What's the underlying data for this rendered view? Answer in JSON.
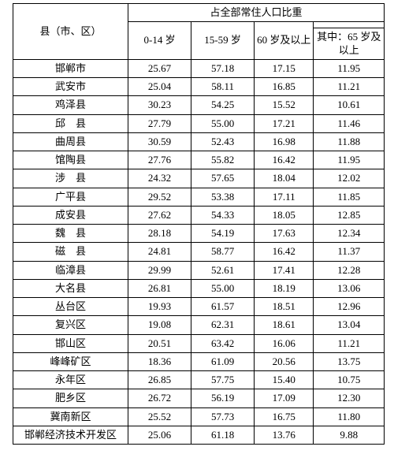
{
  "table": {
    "type": "table",
    "background_color": "#ffffff",
    "border_color": "#000000",
    "font_family": "SimSun",
    "header_fontsize": 13,
    "cell_fontsize": 13,
    "col_widths_pct": [
      31,
      17,
      17,
      16,
      19
    ],
    "header": {
      "region_label": "县（市、区）",
      "group_label": "占全部常住人口比重",
      "col_0_14": "0-14 岁",
      "col_15_59": "15-59 岁",
      "col_60_plus": "60 岁及以上",
      "col_65_plus": "其中：65 岁及以上"
    },
    "rows": [
      {
        "region": "邯郸市",
        "age_0_14": "25.67",
        "age_15_59": "57.18",
        "age_60_plus": "17.15",
        "age_65_plus": "11.95"
      },
      {
        "region": "武安市",
        "age_0_14": "25.04",
        "age_15_59": "58.11",
        "age_60_plus": "16.85",
        "age_65_plus": "11.21"
      },
      {
        "region": "鸡泽县",
        "age_0_14": "30.23",
        "age_15_59": "54.25",
        "age_60_plus": "15.52",
        "age_65_plus": "10.61"
      },
      {
        "region": "邱　县",
        "age_0_14": "27.79",
        "age_15_59": "55.00",
        "age_60_plus": "17.21",
        "age_65_plus": "11.46"
      },
      {
        "region": "曲周县",
        "age_0_14": "30.59",
        "age_15_59": "52.43",
        "age_60_plus": "16.98",
        "age_65_plus": "11.88"
      },
      {
        "region": "馆陶县",
        "age_0_14": "27.76",
        "age_15_59": "55.82",
        "age_60_plus": "16.42",
        "age_65_plus": "11.95"
      },
      {
        "region": "涉　县",
        "age_0_14": "24.32",
        "age_15_59": "57.65",
        "age_60_plus": "18.04",
        "age_65_plus": "12.02"
      },
      {
        "region": "广平县",
        "age_0_14": "29.52",
        "age_15_59": "53.38",
        "age_60_plus": "17.11",
        "age_65_plus": "11.85"
      },
      {
        "region": "成安县",
        "age_0_14": "27.62",
        "age_15_59": "54.33",
        "age_60_plus": "18.05",
        "age_65_plus": "12.85"
      },
      {
        "region": "魏　县",
        "age_0_14": "28.18",
        "age_15_59": "54.19",
        "age_60_plus": "17.63",
        "age_65_plus": "12.34"
      },
      {
        "region": "磁　县",
        "age_0_14": "24.81",
        "age_15_59": "58.77",
        "age_60_plus": "16.42",
        "age_65_plus": "11.37"
      },
      {
        "region": "临漳县",
        "age_0_14": "29.99",
        "age_15_59": "52.61",
        "age_60_plus": "17.41",
        "age_65_plus": "12.28"
      },
      {
        "region": "大名县",
        "age_0_14": "26.81",
        "age_15_59": "55.00",
        "age_60_plus": "18.19",
        "age_65_plus": "13.06"
      },
      {
        "region": "丛台区",
        "age_0_14": "19.93",
        "age_15_59": "61.57",
        "age_60_plus": "18.51",
        "age_65_plus": "12.96"
      },
      {
        "region": "复兴区",
        "age_0_14": "19.08",
        "age_15_59": "62.31",
        "age_60_plus": "18.61",
        "age_65_plus": "13.04"
      },
      {
        "region": "邯山区",
        "age_0_14": "20.51",
        "age_15_59": "63.42",
        "age_60_plus": "16.06",
        "age_65_plus": "11.21"
      },
      {
        "region": "峰峰矿区",
        "age_0_14": "18.36",
        "age_15_59": "61.09",
        "age_60_plus": "20.56",
        "age_65_plus": "13.75"
      },
      {
        "region": "永年区",
        "age_0_14": "26.85",
        "age_15_59": "57.75",
        "age_60_plus": "15.40",
        "age_65_plus": "10.75"
      },
      {
        "region": "肥乡区",
        "age_0_14": "26.72",
        "age_15_59": "56.19",
        "age_60_plus": "17.09",
        "age_65_plus": "12.30"
      },
      {
        "region": "冀南新区",
        "age_0_14": "25.52",
        "age_15_59": "57.73",
        "age_60_plus": "16.75",
        "age_65_plus": "11.80"
      },
      {
        "region": "邯郸经济技术开发区",
        "age_0_14": "25.06",
        "age_15_59": "61.18",
        "age_60_plus": "13.76",
        "age_65_plus": "9.88"
      }
    ]
  }
}
